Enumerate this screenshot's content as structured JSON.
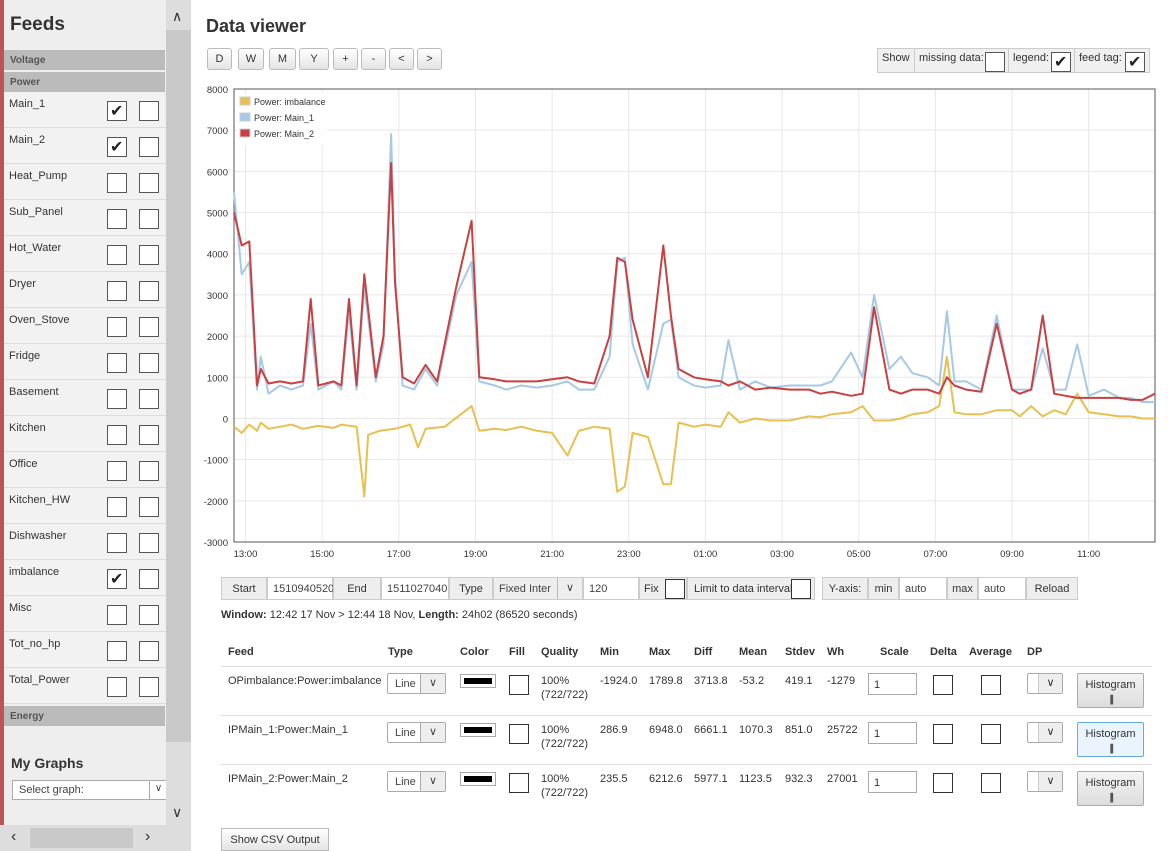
{
  "sidebar": {
    "title": "Feeds",
    "groups": {
      "voltage": "Voltage",
      "power": "Power",
      "energy": "Energy"
    },
    "feeds": [
      {
        "name": "Main_1",
        "left": true,
        "right": false
      },
      {
        "name": "Main_2",
        "left": true,
        "right": false
      },
      {
        "name": "Heat_Pump",
        "left": false,
        "right": false
      },
      {
        "name": "Sub_Panel",
        "left": false,
        "right": false
      },
      {
        "name": "Hot_Water",
        "left": false,
        "right": false
      },
      {
        "name": "Dryer",
        "left": false,
        "right": false
      },
      {
        "name": "Oven_Stove",
        "left": false,
        "right": false
      },
      {
        "name": "Fridge",
        "left": false,
        "right": false
      },
      {
        "name": "Basement",
        "left": false,
        "right": false
      },
      {
        "name": "Kitchen",
        "left": false,
        "right": false
      },
      {
        "name": "Office",
        "left": false,
        "right": false
      },
      {
        "name": "Kitchen_HW",
        "left": false,
        "right": false
      },
      {
        "name": "Dishwasher",
        "left": false,
        "right": false
      },
      {
        "name": "imbalance",
        "left": true,
        "right": false
      },
      {
        "name": "Misc",
        "left": false,
        "right": false
      },
      {
        "name": "Tot_no_hp",
        "left": false,
        "right": false
      },
      {
        "name": "Total_Power",
        "left": false,
        "right": false
      }
    ],
    "my_graphs": {
      "title": "My Graphs",
      "select_placeholder": "Select graph:"
    }
  },
  "main": {
    "title": "Data viewer",
    "range_buttons": [
      "D",
      "W",
      "M",
      "Y",
      "+",
      "-",
      "<",
      ">"
    ],
    "options": {
      "show": "Show",
      "missing_data": "missing data:",
      "legend": "legend:",
      "feed_tag": "feed tag:",
      "missing_checked": false,
      "legend_checked": true,
      "feed_tag_checked": true
    }
  },
  "chart_data": {
    "type": "line",
    "title": "",
    "xlabel": "",
    "ylabel": "",
    "ylim": [
      -3000,
      8000
    ],
    "yticks": [
      -3000,
      -2000,
      -1000,
      0,
      1000,
      2000,
      3000,
      4000,
      5000,
      6000,
      7000,
      8000
    ],
    "xlim": [
      12.7,
      36.73
    ],
    "xticks": [
      {
        "h": 13,
        "label": "13:00"
      },
      {
        "h": 15,
        "label": "15:00"
      },
      {
        "h": 17,
        "label": "17:00"
      },
      {
        "h": 19,
        "label": "19:00"
      },
      {
        "h": 21,
        "label": "21:00"
      },
      {
        "h": 23,
        "label": "23:00"
      },
      {
        "h": 25,
        "label": "01:00"
      },
      {
        "h": 27,
        "label": "03:00"
      },
      {
        "h": 29,
        "label": "05:00"
      },
      {
        "h": 31,
        "label": "07:00"
      },
      {
        "h": 33,
        "label": "09:00"
      },
      {
        "h": 35,
        "label": "11:00"
      }
    ],
    "grid": true,
    "legend_position": "top-left",
    "series": [
      {
        "name": "Power: imbalance",
        "color": "#e8c050",
        "points": [
          [
            12.7,
            -200
          ],
          [
            12.9,
            -350
          ],
          [
            13.1,
            -150
          ],
          [
            13.3,
            -300
          ],
          [
            13.4,
            -100
          ],
          [
            13.6,
            -250
          ],
          [
            13.9,
            -200
          ],
          [
            14.2,
            -150
          ],
          [
            14.5,
            -250
          ],
          [
            14.9,
            -180
          ],
          [
            15.3,
            -230
          ],
          [
            15.5,
            -150
          ],
          [
            15.9,
            -200
          ],
          [
            16.1,
            -1900
          ],
          [
            16.2,
            -400
          ],
          [
            16.5,
            -300
          ],
          [
            16.9,
            -250
          ],
          [
            17.3,
            -150
          ],
          [
            17.5,
            -700
          ],
          [
            17.7,
            -250
          ],
          [
            18.2,
            -200
          ],
          [
            18.9,
            300
          ],
          [
            19.1,
            -300
          ],
          [
            19.5,
            -250
          ],
          [
            19.8,
            -280
          ],
          [
            20.2,
            -200
          ],
          [
            20.6,
            -300
          ],
          [
            21.0,
            -350
          ],
          [
            21.4,
            -900
          ],
          [
            21.7,
            -300
          ],
          [
            22.1,
            -200
          ],
          [
            22.5,
            -250
          ],
          [
            22.7,
            -1780
          ],
          [
            22.9,
            -1650
          ],
          [
            23.1,
            -350
          ],
          [
            23.5,
            -450
          ],
          [
            23.9,
            -1600
          ],
          [
            24.1,
            -1600
          ],
          [
            24.3,
            -100
          ],
          [
            24.7,
            -200
          ],
          [
            25.0,
            -150
          ],
          [
            25.4,
            -200
          ],
          [
            25.6,
            150
          ],
          [
            25.9,
            -100
          ],
          [
            26.3,
            0
          ],
          [
            26.7,
            -50
          ],
          [
            27.2,
            -50
          ],
          [
            27.7,
            50
          ],
          [
            28.0,
            30
          ],
          [
            28.3,
            100
          ],
          [
            28.8,
            150
          ],
          [
            29.1,
            300
          ],
          [
            29.4,
            -50
          ],
          [
            29.8,
            -50
          ],
          [
            30.1,
            0
          ],
          [
            30.4,
            100
          ],
          [
            30.8,
            150
          ],
          [
            31.1,
            300
          ],
          [
            31.3,
            1500
          ],
          [
            31.5,
            150
          ],
          [
            31.8,
            100
          ],
          [
            32.2,
            100
          ],
          [
            32.6,
            200
          ],
          [
            33.0,
            200
          ],
          [
            33.2,
            50
          ],
          [
            33.5,
            300
          ],
          [
            33.8,
            50
          ],
          [
            34.1,
            200
          ],
          [
            34.4,
            100
          ],
          [
            34.7,
            600
          ],
          [
            35.0,
            150
          ],
          [
            35.4,
            100
          ],
          [
            35.8,
            50
          ],
          [
            36.1,
            50
          ],
          [
            36.4,
            0
          ],
          [
            36.73,
            0
          ]
        ]
      },
      {
        "name": "Power: Main_1",
        "color": "#a7c9e8",
        "points": [
          [
            12.7,
            5500
          ],
          [
            12.9,
            3500
          ],
          [
            13.1,
            3800
          ],
          [
            13.3,
            700
          ],
          [
            13.4,
            1500
          ],
          [
            13.6,
            600
          ],
          [
            13.9,
            800
          ],
          [
            14.2,
            700
          ],
          [
            14.5,
            800
          ],
          [
            14.7,
            2300
          ],
          [
            14.9,
            700
          ],
          [
            15.3,
            900
          ],
          [
            15.5,
            700
          ],
          [
            15.7,
            2600
          ],
          [
            15.9,
            700
          ],
          [
            16.1,
            3200
          ],
          [
            16.4,
            900
          ],
          [
            16.6,
            1800
          ],
          [
            16.8,
            6900
          ],
          [
            16.9,
            3500
          ],
          [
            17.1,
            800
          ],
          [
            17.4,
            700
          ],
          [
            17.7,
            1200
          ],
          [
            18.0,
            800
          ],
          [
            18.5,
            3000
          ],
          [
            18.9,
            3800
          ],
          [
            19.1,
            900
          ],
          [
            19.5,
            800
          ],
          [
            19.8,
            700
          ],
          [
            20.2,
            800
          ],
          [
            20.6,
            750
          ],
          [
            21.0,
            800
          ],
          [
            21.4,
            900
          ],
          [
            21.7,
            700
          ],
          [
            22.1,
            700
          ],
          [
            22.5,
            1500
          ],
          [
            22.7,
            3800
          ],
          [
            22.9,
            3900
          ],
          [
            23.1,
            1800
          ],
          [
            23.5,
            700
          ],
          [
            23.9,
            2300
          ],
          [
            24.1,
            2400
          ],
          [
            24.3,
            1000
          ],
          [
            24.7,
            800
          ],
          [
            25.0,
            750
          ],
          [
            25.4,
            800
          ],
          [
            25.6,
            1900
          ],
          [
            25.9,
            700
          ],
          [
            26.3,
            900
          ],
          [
            26.7,
            750
          ],
          [
            27.2,
            800
          ],
          [
            27.7,
            800
          ],
          [
            28.0,
            800
          ],
          [
            28.3,
            900
          ],
          [
            28.8,
            1600
          ],
          [
            29.1,
            1000
          ],
          [
            29.4,
            3000
          ],
          [
            29.8,
            1200
          ],
          [
            30.1,
            1500
          ],
          [
            30.4,
            1100
          ],
          [
            30.8,
            1000
          ],
          [
            31.1,
            800
          ],
          [
            31.3,
            2600
          ],
          [
            31.5,
            900
          ],
          [
            31.8,
            900
          ],
          [
            32.2,
            700
          ],
          [
            32.6,
            2500
          ],
          [
            33.0,
            700
          ],
          [
            33.2,
            700
          ],
          [
            33.5,
            700
          ],
          [
            33.8,
            1700
          ],
          [
            34.1,
            700
          ],
          [
            34.4,
            700
          ],
          [
            34.7,
            1800
          ],
          [
            35.0,
            550
          ],
          [
            35.4,
            700
          ],
          [
            35.8,
            500
          ],
          [
            36.1,
            500
          ],
          [
            36.4,
            400
          ],
          [
            36.73,
            400
          ]
        ]
      },
      {
        "name": "Power: Main_2",
        "color": "#c84040",
        "points": [
          [
            12.7,
            5000
          ],
          [
            12.9,
            4200
          ],
          [
            13.1,
            4300
          ],
          [
            13.3,
            800
          ],
          [
            13.4,
            1200
          ],
          [
            13.6,
            850
          ],
          [
            13.9,
            900
          ],
          [
            14.2,
            850
          ],
          [
            14.5,
            900
          ],
          [
            14.7,
            2900
          ],
          [
            14.9,
            800
          ],
          [
            15.3,
            900
          ],
          [
            15.5,
            800
          ],
          [
            15.7,
            2900
          ],
          [
            15.9,
            800
          ],
          [
            16.1,
            3500
          ],
          [
            16.4,
            1000
          ],
          [
            16.6,
            2000
          ],
          [
            16.8,
            6200
          ],
          [
            16.9,
            3300
          ],
          [
            17.1,
            1000
          ],
          [
            17.4,
            850
          ],
          [
            17.7,
            1300
          ],
          [
            18.0,
            900
          ],
          [
            18.5,
            3200
          ],
          [
            18.9,
            4800
          ],
          [
            19.1,
            1000
          ],
          [
            19.5,
            950
          ],
          [
            19.8,
            900
          ],
          [
            20.2,
            900
          ],
          [
            20.6,
            900
          ],
          [
            21.0,
            950
          ],
          [
            21.4,
            1000
          ],
          [
            21.7,
            900
          ],
          [
            22.1,
            850
          ],
          [
            22.5,
            2000
          ],
          [
            22.7,
            3900
          ],
          [
            22.9,
            3800
          ],
          [
            23.1,
            2400
          ],
          [
            23.5,
            1000
          ],
          [
            23.9,
            4200
          ],
          [
            24.1,
            2500
          ],
          [
            24.3,
            1200
          ],
          [
            24.7,
            1000
          ],
          [
            25.0,
            950
          ],
          [
            25.4,
            900
          ],
          [
            25.6,
            800
          ],
          [
            25.9,
            900
          ],
          [
            26.3,
            700
          ],
          [
            26.7,
            750
          ],
          [
            27.2,
            700
          ],
          [
            27.7,
            700
          ],
          [
            28.0,
            600
          ],
          [
            28.3,
            650
          ],
          [
            28.8,
            550
          ],
          [
            29.1,
            600
          ],
          [
            29.4,
            2700
          ],
          [
            29.8,
            700
          ],
          [
            30.1,
            600
          ],
          [
            30.4,
            700
          ],
          [
            30.8,
            700
          ],
          [
            31.1,
            600
          ],
          [
            31.3,
            1000
          ],
          [
            31.5,
            800
          ],
          [
            31.8,
            700
          ],
          [
            32.2,
            650
          ],
          [
            32.6,
            2300
          ],
          [
            33.0,
            700
          ],
          [
            33.2,
            600
          ],
          [
            33.5,
            700
          ],
          [
            33.8,
            2500
          ],
          [
            34.1,
            600
          ],
          [
            34.4,
            550
          ],
          [
            34.7,
            500
          ],
          [
            35.0,
            500
          ],
          [
            35.4,
            500
          ],
          [
            35.8,
            500
          ],
          [
            36.1,
            450
          ],
          [
            36.4,
            450
          ],
          [
            36.73,
            600
          ]
        ]
      }
    ]
  },
  "controls": {
    "start_label": "Start",
    "start_value": "1510940520",
    "end_label": "End",
    "end_value": "1511027040",
    "type_label": "Type",
    "type_value": "Fixed Inter",
    "interval_value": "120",
    "fix_label": "Fix",
    "limit_label": "Limit to data interval",
    "yaxis_label": "Y-axis:",
    "min_label": "min",
    "min_value": "auto",
    "max_label": "max",
    "max_value": "auto",
    "reload_label": "Reload"
  },
  "window_info": {
    "window_label": "Window:",
    "window_value": "12:42 17 Nov > 12:44 18 Nov,",
    "length_label": "Length:",
    "length_value": "24h02 (86520 seconds)"
  },
  "table": {
    "headers": [
      "Feed",
      "Type",
      "Color",
      "Fill",
      "Quality",
      "Min",
      "Max",
      "Diff",
      "Mean",
      "Stdev",
      "Wh",
      "Scale",
      "Delta",
      "Average",
      "DP"
    ],
    "rows": [
      {
        "feed": "OPimbalance:Power:imbalance",
        "type": "Line",
        "quality": "100%",
        "quality_sub": "(722/722)",
        "min": "-1924.0",
        "max": "1789.8",
        "diff": "3713.8",
        "mean": "-53.2",
        "stdev": "419.1",
        "wh": "-1279",
        "scale": "1",
        "hist": "Histogram"
      },
      {
        "feed": "IPMain_1:Power:Main_1",
        "type": "Line",
        "quality": "100%",
        "quality_sub": "(722/722)",
        "min": "286.9",
        "max": "6948.0",
        "diff": "6661.1",
        "mean": "1070.3",
        "stdev": "851.0",
        "wh": "25722",
        "scale": "1",
        "hist": "Histogram"
      },
      {
        "feed": "IPMain_2:Power:Main_2",
        "type": "Line",
        "quality": "100%",
        "quality_sub": "(722/722)",
        "min": "235.5",
        "max": "6212.6",
        "diff": "5977.1",
        "mean": "1123.5",
        "stdev": "932.3",
        "wh": "27001",
        "scale": "1",
        "hist": "Histogram"
      }
    ]
  },
  "csv_button": "Show CSV Output"
}
